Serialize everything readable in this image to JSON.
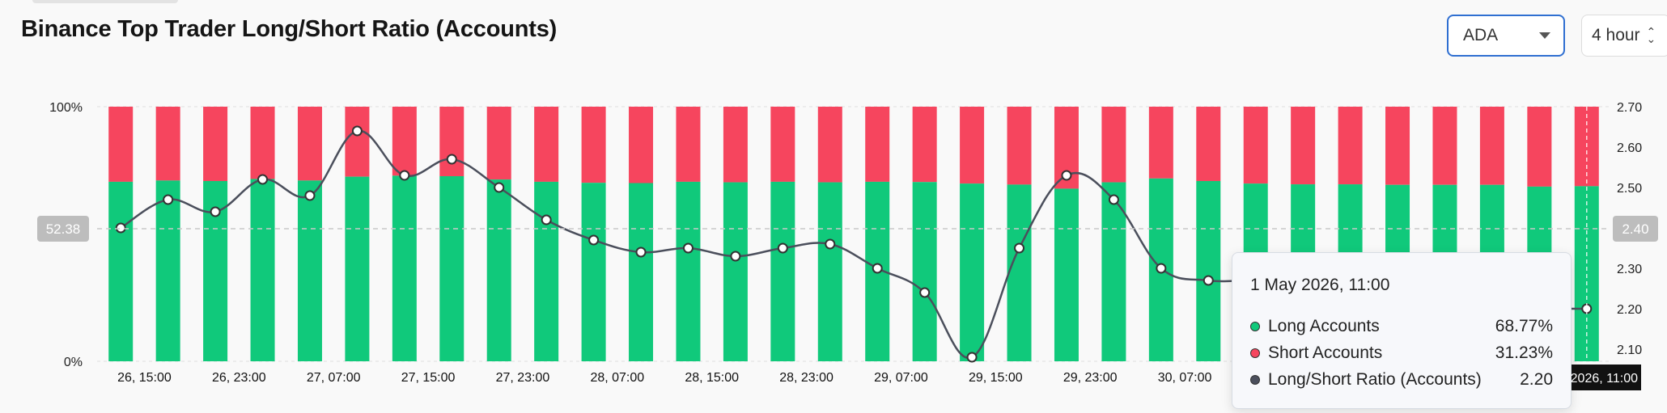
{
  "header": {
    "title": "Binance Top Trader Long/Short Ratio (Accounts)",
    "asset_select": {
      "value": "ADA",
      "icon": "chevron-down-icon"
    },
    "interval_select": {
      "value": "4 hour",
      "icon": "up-down-chevron-icon"
    }
  },
  "colors": {
    "long": "#10c97b",
    "short": "#f6455e",
    "ratio_line": "#4b4f5c",
    "highlight_long": "#0e9e62",
    "highlight_short": "#c8374b"
  },
  "chart_data": {
    "type": "bar",
    "stacked_percent": true,
    "left_axis": {
      "ticks": [
        "100%",
        "0%"
      ],
      "range": [
        0,
        100
      ]
    },
    "right_axis": {
      "ticks": [
        "2.70",
        "2.60",
        "2.50",
        "2.40",
        "2.30",
        "2.20",
        "2.10"
      ],
      "range": [
        2.07,
        2.7
      ]
    },
    "x_labels": [
      "26, 15:00",
      "26, 23:00",
      "27, 07:00",
      "27, 15:00",
      "27, 23:00",
      "28, 07:00",
      "28, 15:00",
      "28, 23:00",
      "29, 07:00",
      "29, 15:00",
      "29, 23:00",
      "30, 07:00"
    ],
    "long_accounts_pct": [
      70.5,
      71.0,
      70.8,
      71.6,
      71.0,
      72.5,
      72.9,
      72.7,
      71.4,
      70.5,
      70.1,
      70.0,
      70.5,
      70.3,
      70.5,
      70.3,
      70.5,
      70.4,
      69.8,
      69.4,
      67.8,
      70.3,
      71.8,
      70.8,
      69.8,
      69.5,
      69.5,
      69.3,
      69.3,
      69.3,
      68.6,
      68.77
    ],
    "ratio": [
      2.4,
      2.47,
      2.44,
      2.52,
      2.48,
      2.64,
      2.53,
      2.57,
      2.5,
      2.42,
      2.37,
      2.34,
      2.35,
      2.33,
      2.35,
      2.36,
      2.3,
      2.24,
      2.08,
      2.35,
      2.53,
      2.47,
      2.3,
      2.27,
      2.27,
      2.26,
      2.24,
      2.22,
      2.22,
      2.2,
      2.2,
      2.2
    ],
    "crosshair": {
      "index": 31,
      "left_value": "52.38",
      "right_value": "2.40",
      "x_label": "2026, 11:00"
    }
  },
  "tooltip": {
    "date": "1 May 2026, 11:00",
    "rows": [
      {
        "label": "Long Accounts",
        "value": "68.77%",
        "color": "#10c97b"
      },
      {
        "label": "Short Accounts",
        "value": "31.23%",
        "color": "#f6455e"
      },
      {
        "label": "Long/Short Ratio (Accounts)",
        "value": "2.20",
        "color": "#4b4f5c"
      }
    ]
  }
}
